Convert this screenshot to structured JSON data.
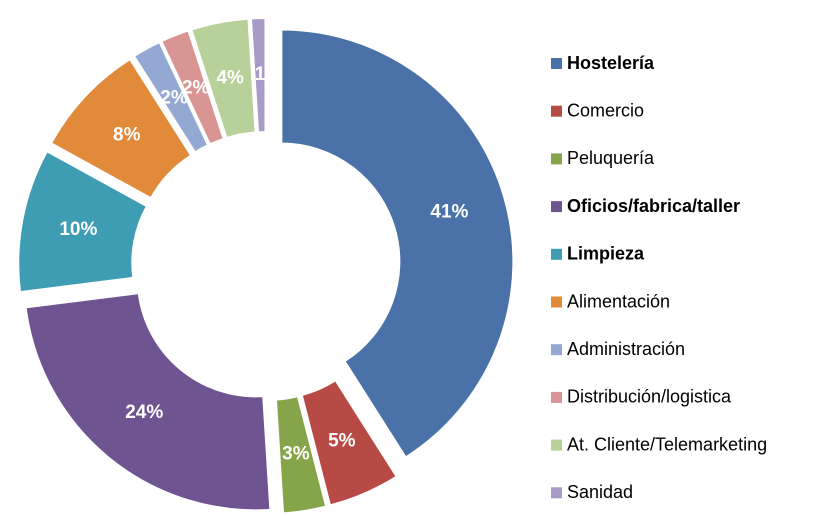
{
  "chart_data": {
    "type": "donut",
    "categories": [
      "Hostelería",
      "Comercio",
      "Peluquería",
      "Oficios/fabrica/taller",
      "Limpieza",
      "Alimentación",
      "Administración",
      "Distribución/logistica",
      "At. Cliente/Telemarketing",
      "Sanidad"
    ],
    "values": [
      41,
      5,
      3,
      24,
      10,
      8,
      2,
      2,
      4,
      1
    ],
    "value_labels": [
      "41%",
      "5%",
      "3%",
      "24%",
      "10%",
      "8%",
      "2%",
      "2%",
      "4%",
      "1"
    ],
    "colors": [
      "#4a72a8",
      "#b84a45",
      "#86a44a",
      "#6e5591",
      "#3e9db3",
      "#e08a3a",
      "#93a9d4",
      "#d89594",
      "#b8d09a",
      "#a99bc7"
    ],
    "legend": "right",
    "legend_bold": [
      true,
      false,
      false,
      true,
      true,
      false,
      false,
      false,
      false,
      false
    ]
  }
}
